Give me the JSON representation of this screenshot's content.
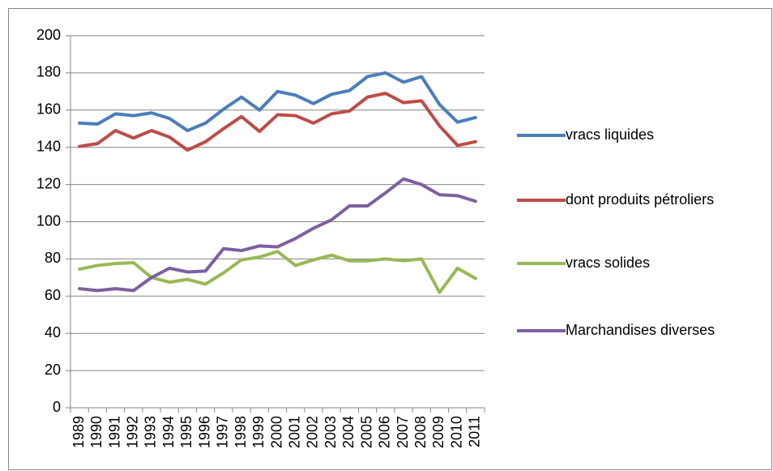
{
  "chart_data": {
    "type": "line",
    "categories": [
      "1989",
      "1990",
      "1991",
      "1992",
      "1993",
      "1994",
      "1995",
      "1996",
      "1997",
      "1998",
      "1999",
      "2000",
      "2001",
      "2002",
      "2003",
      "2004",
      "2005",
      "2006",
      "2007",
      "2008",
      "2009",
      "2010",
      "2011"
    ],
    "series": [
      {
        "name": "vracs liquides",
        "color": "#4a7ebb",
        "values": [
          153,
          152.5,
          158,
          157,
          158.5,
          155.5,
          149,
          153,
          160.5,
          167,
          160,
          170,
          168,
          163.5,
          168.5,
          170.5,
          178,
          180,
          175,
          178,
          163,
          153.5,
          156
        ]
      },
      {
        "name": "dont produits pétroliers",
        "color": "#be4b48",
        "values": [
          140.5,
          142,
          149,
          145,
          149,
          145.5,
          138.5,
          143,
          150,
          156.5,
          148.5,
          157.5,
          157,
          153,
          158,
          159.5,
          167,
          169,
          164,
          165,
          151.5,
          141,
          143
        ]
      },
      {
        "name": "vracs solides",
        "color": "#98b954",
        "values": [
          74.5,
          76.5,
          77.5,
          78,
          70,
          67.5,
          69,
          66.5,
          72.5,
          79.5,
          81,
          84,
          76.5,
          79.5,
          82,
          79,
          79,
          80,
          79,
          80,
          62,
          75,
          69.5
        ]
      },
      {
        "name": "Marchandises diverses",
        "color": "#7d60a0",
        "values": [
          64,
          63,
          64,
          63,
          70,
          75,
          73,
          73.5,
          85.5,
          84.5,
          87,
          86.5,
          91,
          96.5,
          101,
          108.5,
          108.5,
          115.5,
          123,
          120,
          114.5,
          114,
          111
        ]
      }
    ],
    "ylim": [
      0,
      200
    ],
    "yticks": [
      0,
      20,
      40,
      60,
      80,
      100,
      120,
      140,
      160,
      180,
      200
    ],
    "grid": true,
    "legend": "right"
  }
}
